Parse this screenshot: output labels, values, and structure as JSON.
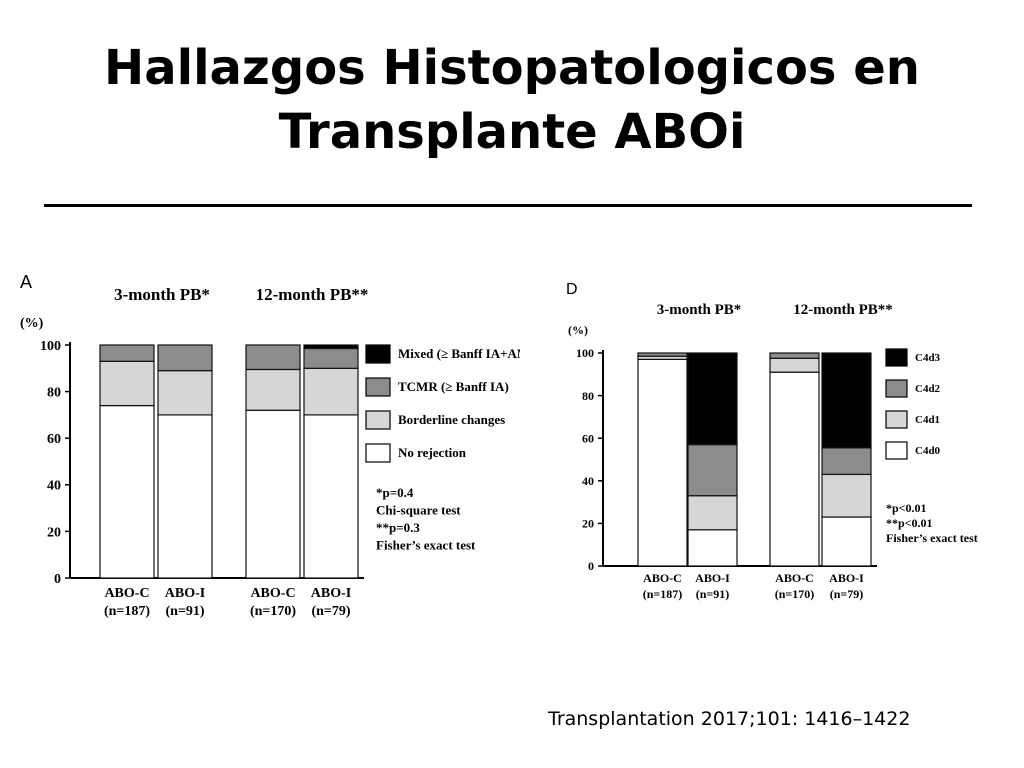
{
  "slide": {
    "title_line1": "Hallazgos Histopatologicos en",
    "title_line2": "Transplante ABOi",
    "citation": "Transplantation 2017;101: 1416–1422"
  },
  "colors": {
    "white": "#ffffff",
    "light_gray": "#d6d6d6",
    "mid_gray": "#8c8c8c",
    "black": "#000000"
  },
  "chart_data": [
    {
      "type": "bar",
      "stacked": true,
      "panel_label": "A",
      "ylabel": "(%)",
      "ylim": [
        0,
        100
      ],
      "yticks": [
        0,
        20,
        40,
        60,
        80,
        100
      ],
      "group_labels": [
        "3-month PB*",
        "12-month PB**"
      ],
      "categories": [
        "ABO-C\n(n=187)",
        "ABO-I\n(n=91)",
        "ABO-C\n(n=170)",
        "ABO-I\n(n=79)"
      ],
      "category_lines": [
        [
          "ABO-C",
          "(n=187)"
        ],
        [
          "ABO-I",
          "(n=91)"
        ],
        [
          "ABO-C",
          "(n=170)"
        ],
        [
          "ABO-I",
          "(n=79)"
        ]
      ],
      "series": [
        {
          "name": "No rejection",
          "color": "#ffffff",
          "values": [
            74,
            70,
            72,
            70
          ]
        },
        {
          "name": "Borderline changes",
          "color": "#d6d6d6",
          "values": [
            19,
            19,
            17.5,
            20
          ]
        },
        {
          "name": "TCMR (≥ Banff IA)",
          "color": "#8c8c8c",
          "values": [
            7,
            11,
            10.5,
            8.5
          ]
        },
        {
          "name": "Mixed (≥ Banff IA+AMR)",
          "color": "#000000",
          "values": [
            0,
            0,
            0,
            1.5
          ]
        }
      ],
      "legend_order": [
        "Mixed (≥ Banff IA+AMR)",
        "TCMR (≥ Banff IA)",
        "Borderline changes",
        "No rejection"
      ],
      "legend_placement": "right",
      "annotations": [
        "*p=0.4",
        "Chi-square test",
        "**p=0.3",
        "Fisher’s exact test"
      ]
    },
    {
      "type": "bar",
      "stacked": true,
      "panel_label": "D",
      "ylabel": "(%)",
      "ylim": [
        0,
        100
      ],
      "yticks": [
        0,
        20,
        40,
        60,
        80,
        100
      ],
      "group_labels": [
        "3-month PB*",
        "12-month PB**"
      ],
      "categories": [
        "ABO-C\n(n=187)",
        "ABO-I\n(n=91)",
        "ABO-C\n(n=170)",
        "ABO-I\n(n=79)"
      ],
      "category_lines": [
        [
          "ABO-C",
          "(n=187)"
        ],
        [
          "ABO-I",
          "(n=91)"
        ],
        [
          "ABO-C",
          "(n=170)"
        ],
        [
          "ABO-I",
          "(n=79)"
        ]
      ],
      "series": [
        {
          "name": "C4d0",
          "color": "#ffffff",
          "values": [
            97,
            17,
            91,
            23
          ]
        },
        {
          "name": "C4d1",
          "color": "#d6d6d6",
          "values": [
            1.5,
            16,
            6.5,
            20
          ]
        },
        {
          "name": "C4d2",
          "color": "#8c8c8c",
          "values": [
            1.5,
            24,
            2.5,
            12.5
          ]
        },
        {
          "name": "C4d3",
          "color": "#000000",
          "values": [
            0,
            43,
            0,
            44.5
          ]
        }
      ],
      "legend_order": [
        "C4d3",
        "C4d2",
        "C4d1",
        "C4d0"
      ],
      "legend_placement": "right",
      "annotations": [
        "*p<0.01",
        "**p<0.01",
        "Fisher’s exact test"
      ]
    }
  ]
}
